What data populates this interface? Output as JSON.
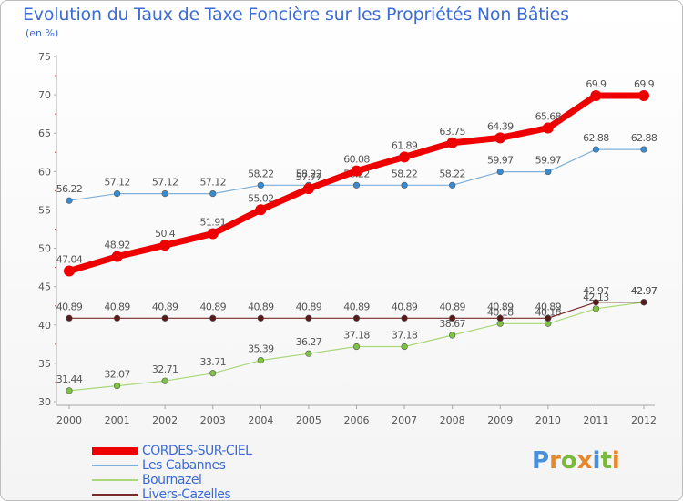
{
  "title": "Evolution du Taux de Taxe Foncière sur les Propriétés Non Bâties",
  "unit_label": "(en %)",
  "logo": {
    "text": "Proxiti",
    "letters": [
      "P",
      "r",
      "o",
      "x",
      "i",
      "t",
      "i"
    ],
    "colors": [
      "#4a8fd8",
      "#e8882a",
      "#7ab93c",
      "#e8882a",
      "#4a8fd8",
      "#7ab93c",
      "#e8882a"
    ]
  },
  "chart_data": {
    "type": "line",
    "title": "Evolution du Taux de Taxe Foncière sur les Propriétés Non Bâties",
    "ylabel": "(en %)",
    "xlabel": "",
    "ylim": [
      30,
      75
    ],
    "yticks": [
      "30",
      "35",
      "40",
      "45",
      "50",
      "55",
      "60",
      "65",
      "70",
      "75"
    ],
    "x": [
      "2000",
      "2001",
      "2002",
      "2003",
      "2004",
      "2005",
      "2006",
      "2007",
      "2008",
      "2009",
      "2010",
      "2011",
      "2012"
    ],
    "series": [
      {
        "name": "Bournazel",
        "color": "#a8d878",
        "marker": "#7dc242",
        "width": 1.2,
        "values": [
          31.44,
          32.07,
          32.71,
          33.71,
          35.39,
          36.27,
          37.18,
          37.18,
          38.67,
          40.18,
          40.18,
          42.13,
          42.97
        ],
        "labels": [
          "31.44",
          "32.07",
          "32.71",
          "33.71",
          "35.39",
          "36.27",
          "37.18",
          "37.18",
          "38.67",
          "40.18",
          "40.18",
          "42.13",
          "42.97"
        ]
      },
      {
        "name": "Livers-Cazelles",
        "color": "#7a2a2a",
        "marker": "#5a1a1a",
        "width": 1.2,
        "values": [
          40.89,
          40.89,
          40.89,
          40.89,
          40.89,
          40.89,
          40.89,
          40.89,
          40.89,
          40.89,
          40.89,
          42.97,
          42.97
        ],
        "labels": [
          "40.89",
          "40.89",
          "40.89",
          "40.89",
          "40.89",
          "40.89",
          "40.89",
          "40.89",
          "40.89",
          "40.89",
          "40.89",
          "42.97",
          "42.97"
        ]
      },
      {
        "name": "Les Cabannes",
        "color": "#7eb0da",
        "marker": "#3a8ad0",
        "width": 1.2,
        "values": [
          56.22,
          57.12,
          57.12,
          57.12,
          58.22,
          58.22,
          58.22,
          58.22,
          58.22,
          59.97,
          59.97,
          62.88,
          62.88
        ],
        "labels": [
          "56.22",
          "57.12",
          "57.12",
          "57.12",
          "58.22",
          "58.22",
          "58.22",
          "58.22",
          "58.22",
          "59.97",
          "59.97",
          "62.88",
          "62.88"
        ]
      },
      {
        "name": "CORDES-SUR-CIEL",
        "color": "#ee0000",
        "marker": "#ee0000",
        "width": 7,
        "values": [
          47.04,
          48.92,
          50.4,
          51.91,
          55.02,
          57.77,
          60.08,
          61.89,
          63.75,
          64.39,
          65.68,
          69.9,
          69.9
        ],
        "labels": [
          "47.04",
          "48.92",
          "50.4",
          "51.91",
          "55.02",
          "57.77",
          "60.08",
          "61.89",
          "63.75",
          "64.39",
          "65.68",
          "69.9",
          "69.9"
        ]
      }
    ],
    "legend": [
      {
        "name": "CORDES-SUR-CIEL",
        "color": "#ee0000",
        "thickness": 8
      },
      {
        "name": "Les Cabannes",
        "color": "#7eb0da",
        "thickness": 2
      },
      {
        "name": "Bournazel",
        "color": "#a8d878",
        "thickness": 2
      },
      {
        "name": "Livers-Cazelles",
        "color": "#7a2a2a",
        "thickness": 2
      }
    ],
    "grid": false
  }
}
